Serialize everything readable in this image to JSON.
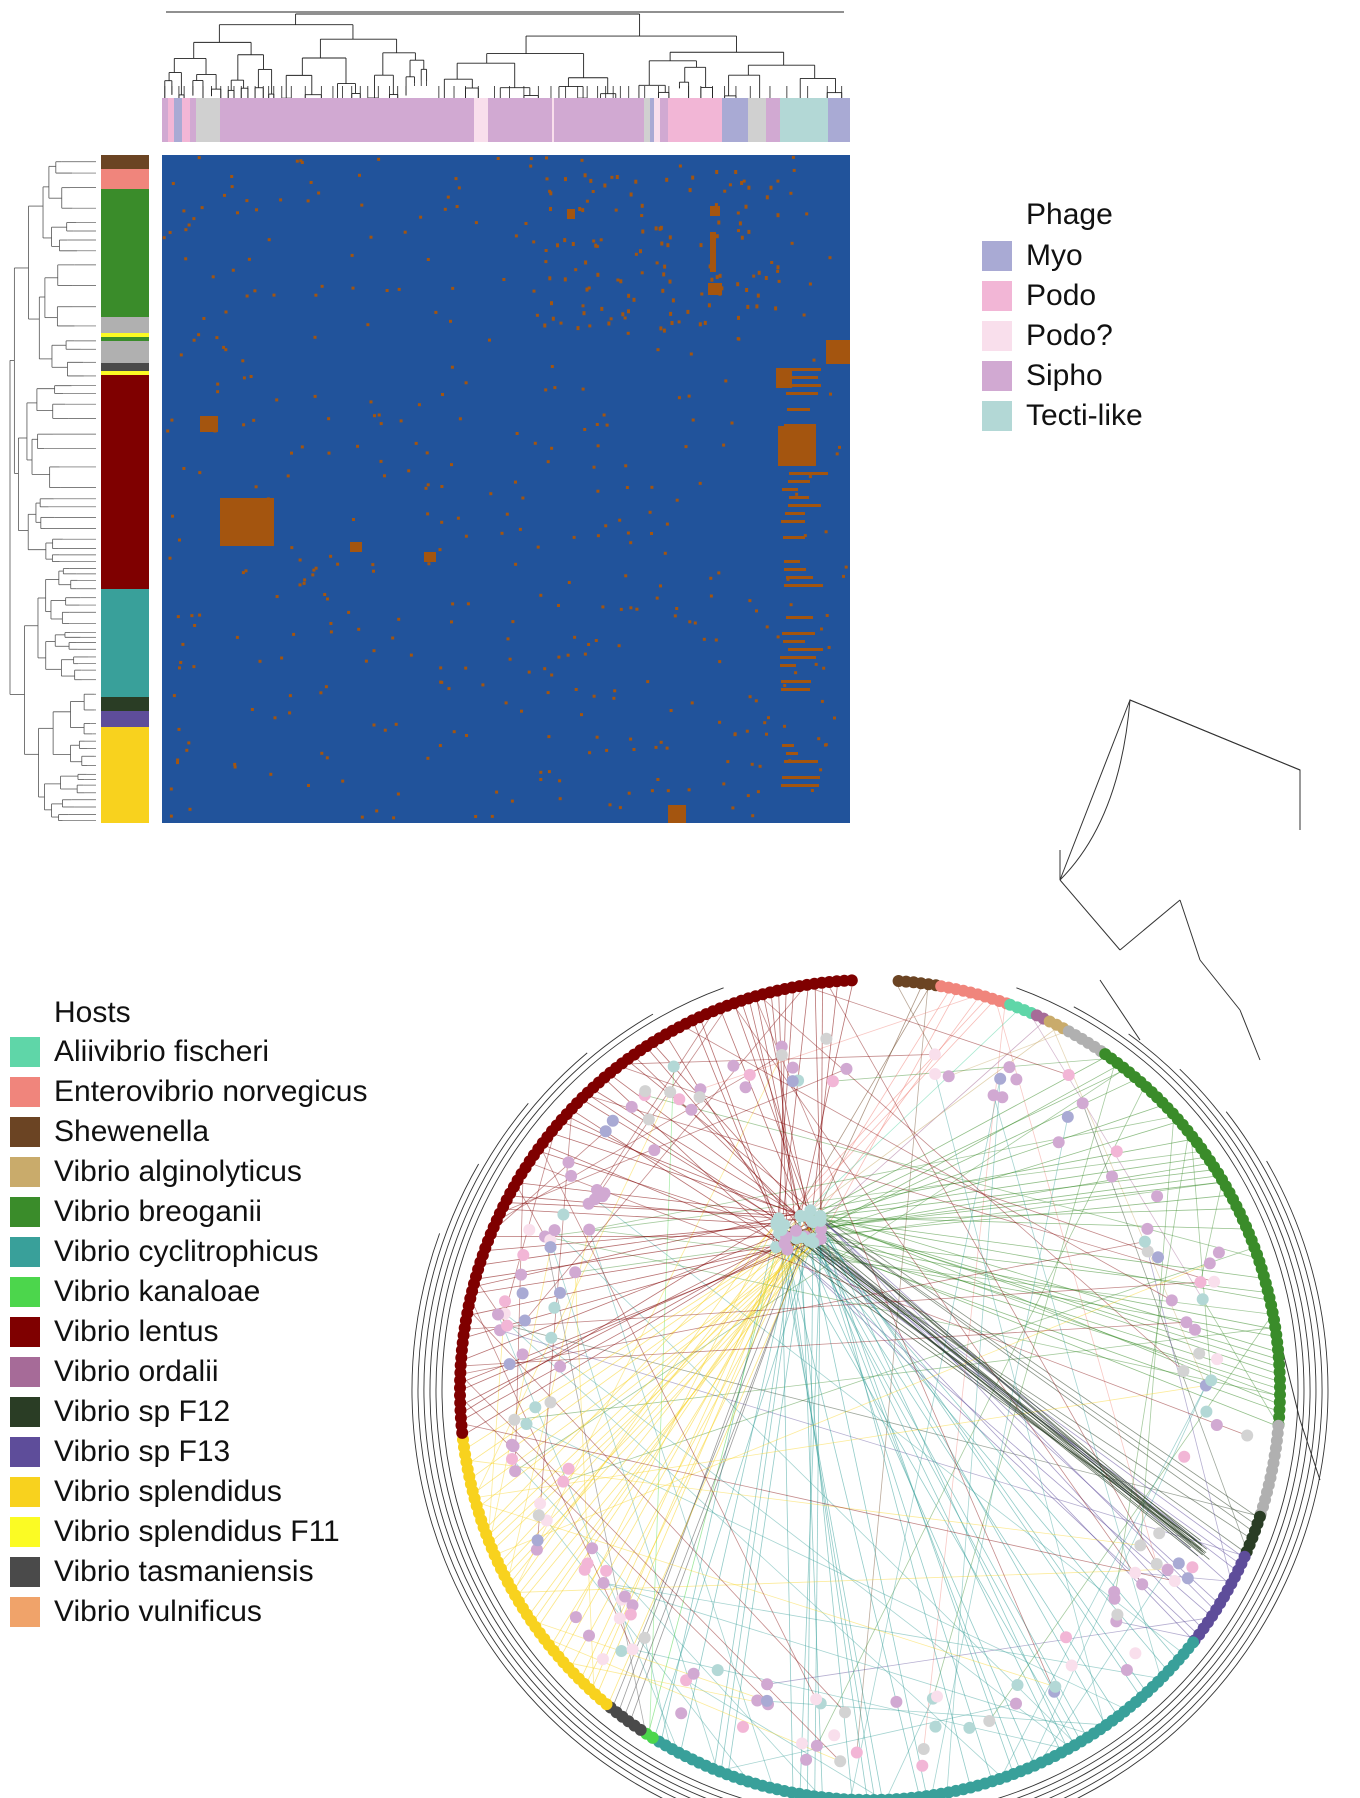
{
  "phage_legend": {
    "title": "Phage",
    "items": [
      {
        "label": "Myo",
        "color": "#a9aad4"
      },
      {
        "label": "Podo",
        "color": "#f2b6d6"
      },
      {
        "label": "Podo?",
        "color": "#f9dfec"
      },
      {
        "label": "Sipho",
        "color": "#d1a9d2"
      },
      {
        "label": "Tecti-like",
        "color": "#b3d8d6"
      }
    ]
  },
  "hosts_legend": {
    "title": "Hosts",
    "items": [
      {
        "label": "Aliivibrio fischeri",
        "color": "#5fd6a8"
      },
      {
        "label": "Enterovibrio norvegicus",
        "color": "#f0857c"
      },
      {
        "label": "Shewenella",
        "color": "#6b4423"
      },
      {
        "label": "Vibrio alginolyticus",
        "color": "#c9ab6b"
      },
      {
        "label": "Vibrio breoganii",
        "color": "#3a8c2a"
      },
      {
        "label": "Vibrio cyclitrophicus",
        "color": "#39a09a"
      },
      {
        "label": "Vibrio kanaloae",
        "color": "#4cd64c"
      },
      {
        "label": "Vibrio lentus",
        "color": "#7f0000"
      },
      {
        "label": "Vibrio ordalii",
        "color": "#a66b98"
      },
      {
        "label": "Vibrio sp F12",
        "color": "#2a3d25"
      },
      {
        "label": "Vibrio sp F13",
        "color": "#5e4d9a"
      },
      {
        "label": "Vibrio splendidus",
        "color": "#f8d21e"
      },
      {
        "label": "Vibrio splendidus F11",
        "color": "#fbfb24"
      },
      {
        "label": "Vibrio tasmaniensis",
        "color": "#4a4a4a"
      },
      {
        "label": "Vibrio vulnificus",
        "color": "#f0a36a"
      }
    ]
  },
  "heatmap": {
    "absent_color": "#21539b",
    "present_color": "#a4550f",
    "host_annotation": [
      {
        "host": "Shewenella",
        "color": "#6b4423"
      },
      {
        "host": "Enterovibrio norvegicus",
        "color": "#f0857c"
      },
      {
        "host": "Vibrio breoganii",
        "color": "#3a8c2a"
      },
      {
        "host": "unassigned",
        "color": "#b0b0b0"
      },
      {
        "host": "Vibrio splendidus F11",
        "color": "#fbfb24"
      },
      {
        "host": "Vibrio breoganii",
        "color": "#3a8c2a"
      },
      {
        "host": "unassigned",
        "color": "#b0b0b0"
      },
      {
        "host": "Vibrio tasmaniensis",
        "color": "#4a4a4a"
      },
      {
        "host": "Vibrio splendidus F11",
        "color": "#fbfb24"
      },
      {
        "host": "Vibrio lentus",
        "color": "#7f0000"
      },
      {
        "host": "Vibrio cyclitrophicus",
        "color": "#39a09a"
      },
      {
        "host": "Vibrio sp F12",
        "color": "#2a3d25"
      },
      {
        "host": "Vibrio sp F13",
        "color": "#5e4d9a"
      },
      {
        "host": "Vibrio splendidus",
        "color": "#f8d21e"
      }
    ],
    "phage_annotation": [
      {
        "class": "Sipho",
        "color": "#d1a9d2"
      },
      {
        "class": "Myo",
        "color": "#a9aad4"
      },
      {
        "class": "unassigned",
        "color": "#d0d0d0"
      },
      {
        "class": "Sipho",
        "color": "#d1a9d2"
      },
      {
        "class": "Podo?",
        "color": "#f9dfec"
      },
      {
        "class": "Sipho",
        "color": "#d1a9d2"
      },
      {
        "class": "Podo?",
        "color": "#f9dfec"
      },
      {
        "class": "Sipho",
        "color": "#d1a9d2"
      },
      {
        "class": "unassigned",
        "color": "#d0d0d0"
      },
      {
        "class": "Podo",
        "color": "#f2b6d6"
      },
      {
        "class": "Myo",
        "color": "#a9aad4"
      },
      {
        "class": "unassigned",
        "color": "#d0d0d0"
      },
      {
        "class": "Sipho",
        "color": "#d1a9d2"
      },
      {
        "class": "Tecti-like",
        "color": "#b3d8d6"
      },
      {
        "class": "Myo",
        "color": "#a9aad4"
      }
    ]
  },
  "network": {
    "unassigned_color": "#d3d3d3",
    "host_arc": [
      {
        "host": "Shewenella",
        "color": "#6b4423"
      },
      {
        "host": "Enterovibrio norvegicus",
        "color": "#f0857c"
      },
      {
        "host": "Aliivibrio fischeri",
        "color": "#5fd6a8"
      },
      {
        "host": "Vibrio ordalii",
        "color": "#a66b98"
      },
      {
        "host": "Vibrio alginolyticus",
        "color": "#c9ab6b"
      },
      {
        "host": "unassigned",
        "color": "#b0b0b0"
      },
      {
        "host": "Vibrio breoganii",
        "color": "#3a8c2a"
      },
      {
        "host": "unassigned",
        "color": "#b0b0b0"
      },
      {
        "host": "Vibrio sp F12",
        "color": "#2a3d25"
      },
      {
        "host": "Vibrio sp F13",
        "color": "#5e4d9a"
      },
      {
        "host": "Vibrio cyclitrophicus",
        "color": "#39a09a"
      },
      {
        "host": "Vibrio kanaloae",
        "color": "#4cd64c"
      },
      {
        "host": "Vibrio tasmaniensis",
        "color": "#4a4a4a"
      },
      {
        "host": "Vibrio splendidus",
        "color": "#f8d21e"
      },
      {
        "host": "Vibrio lentus",
        "color": "#7f0000"
      }
    ]
  }
}
